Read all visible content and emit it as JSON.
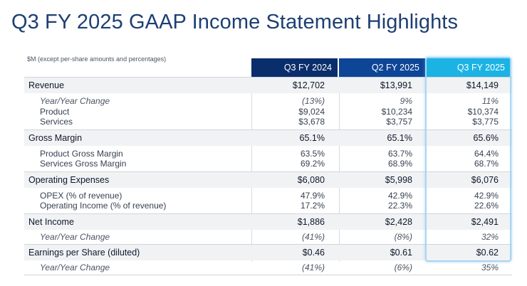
{
  "title": "Q3 FY 2025 GAAP Income Statement Highlights",
  "note": "$M (except per-share amounts and percentages)",
  "columns": [
    "Q3 FY 2024",
    "Q2 FY 2025",
    "Q3 FY 2025"
  ],
  "revenue": {
    "label": "Revenue",
    "values": [
      "$12,702",
      "$13,991",
      "$14,149"
    ],
    "yoy": {
      "label": "Year/Year Change",
      "values": [
        "(13%)",
        "9%",
        "11%"
      ]
    },
    "product": {
      "label": "Product",
      "values": [
        "$9,024",
        "$10,234",
        "$10,374"
      ]
    },
    "services": {
      "label": "Services",
      "values": [
        "$3,678",
        "$3,757",
        "$3,775"
      ]
    }
  },
  "gross_margin": {
    "label": "Gross Margin",
    "values": [
      "65.1%",
      "65.1%",
      "65.6%"
    ],
    "product": {
      "label": "Product Gross Margin",
      "values": [
        "63.5%",
        "63.7%",
        "64.4%"
      ]
    },
    "services": {
      "label": "Services Gross Margin",
      "values": [
        "69.2%",
        "68.9%",
        "68.7%"
      ]
    }
  },
  "opex": {
    "label": "Operating Expenses",
    "values": [
      "$6,080",
      "$5,998",
      "$6,076"
    ],
    "pct": {
      "label": "OPEX (% of revenue)",
      "values": [
        "47.9%",
        "42.9%",
        "42.9%"
      ]
    },
    "op_income": {
      "label": "Operating Income (% of revenue)",
      "values": [
        "17.2%",
        "22.3%",
        "22.6%"
      ]
    }
  },
  "net_income": {
    "label": "Net Income",
    "values": [
      "$1,886",
      "$2,428",
      "$2,491"
    ],
    "yoy": {
      "label": "Year/Year Change",
      "values": [
        "(41%)",
        "(8%)",
        "32%"
      ]
    }
  },
  "eps": {
    "label": "Earnings per Share (diluted)",
    "values": [
      "$0.46",
      "$0.61",
      "$0.62"
    ],
    "yoy": {
      "label": "Year/Year Change",
      "values": [
        "(41%)",
        "(6%)",
        "35%"
      ]
    }
  }
}
